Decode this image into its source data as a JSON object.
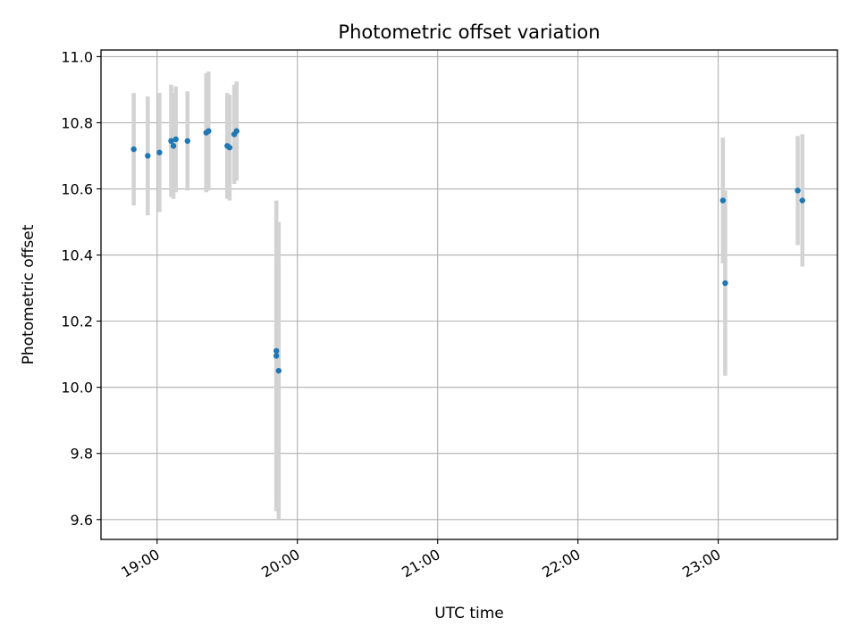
{
  "chart_data": {
    "type": "scatter",
    "title": "Photometric offset variation",
    "xlabel": "UTC time",
    "ylabel": "Photometric offset",
    "grid": true,
    "x_axis_type": "time",
    "xlim": [
      "18:36",
      "23:51"
    ],
    "ylim": [
      9.54,
      11.02
    ],
    "x_ticks": [
      "19:00",
      "20:00",
      "21:00",
      "22:00",
      "23:00"
    ],
    "y_ticks": [
      "9.6",
      "9.8",
      "10.0",
      "10.2",
      "10.4",
      "10.6",
      "10.8",
      "11.0"
    ],
    "colors": {
      "points": "#1f77b4",
      "errorbars": "#d3d3d3",
      "grid": "#b0b0b0"
    },
    "points": [
      {
        "x": "18:50",
        "y": 10.72,
        "err": 0.17
      },
      {
        "x": "18:56",
        "y": 10.7,
        "err": 0.18
      },
      {
        "x": "19:01",
        "y": 10.71,
        "err": 0.18
      },
      {
        "x": "19:06",
        "y": 10.745,
        "err": 0.17
      },
      {
        "x": "19:07",
        "y": 10.73,
        "err": 0.16
      },
      {
        "x": "19:08",
        "y": 10.75,
        "err": 0.16
      },
      {
        "x": "19:13",
        "y": 10.745,
        "err": 0.15
      },
      {
        "x": "19:21",
        "y": 10.77,
        "err": 0.18
      },
      {
        "x": "19:22",
        "y": 10.775,
        "err": 0.18
      },
      {
        "x": "19:30",
        "y": 10.73,
        "err": 0.16
      },
      {
        "x": "19:31",
        "y": 10.725,
        "err": 0.16
      },
      {
        "x": "19:33",
        "y": 10.765,
        "err": 0.15
      },
      {
        "x": "19:34",
        "y": 10.775,
        "err": 0.15
      },
      {
        "x": "19:51",
        "y": 10.11,
        "err": 0.45
      },
      {
        "x": "19:51",
        "y": 10.095,
        "err": 0.47
      },
      {
        "x": "19:52",
        "y": 10.05,
        "err": 0.45
      },
      {
        "x": "23:02",
        "y": 10.565,
        "err": 0.19
      },
      {
        "x": "23:03",
        "y": 10.315,
        "err": 0.28
      },
      {
        "x": "23:34",
        "y": 10.595,
        "err": 0.165
      },
      {
        "x": "23:36",
        "y": 10.565,
        "err": 0.2
      }
    ]
  }
}
